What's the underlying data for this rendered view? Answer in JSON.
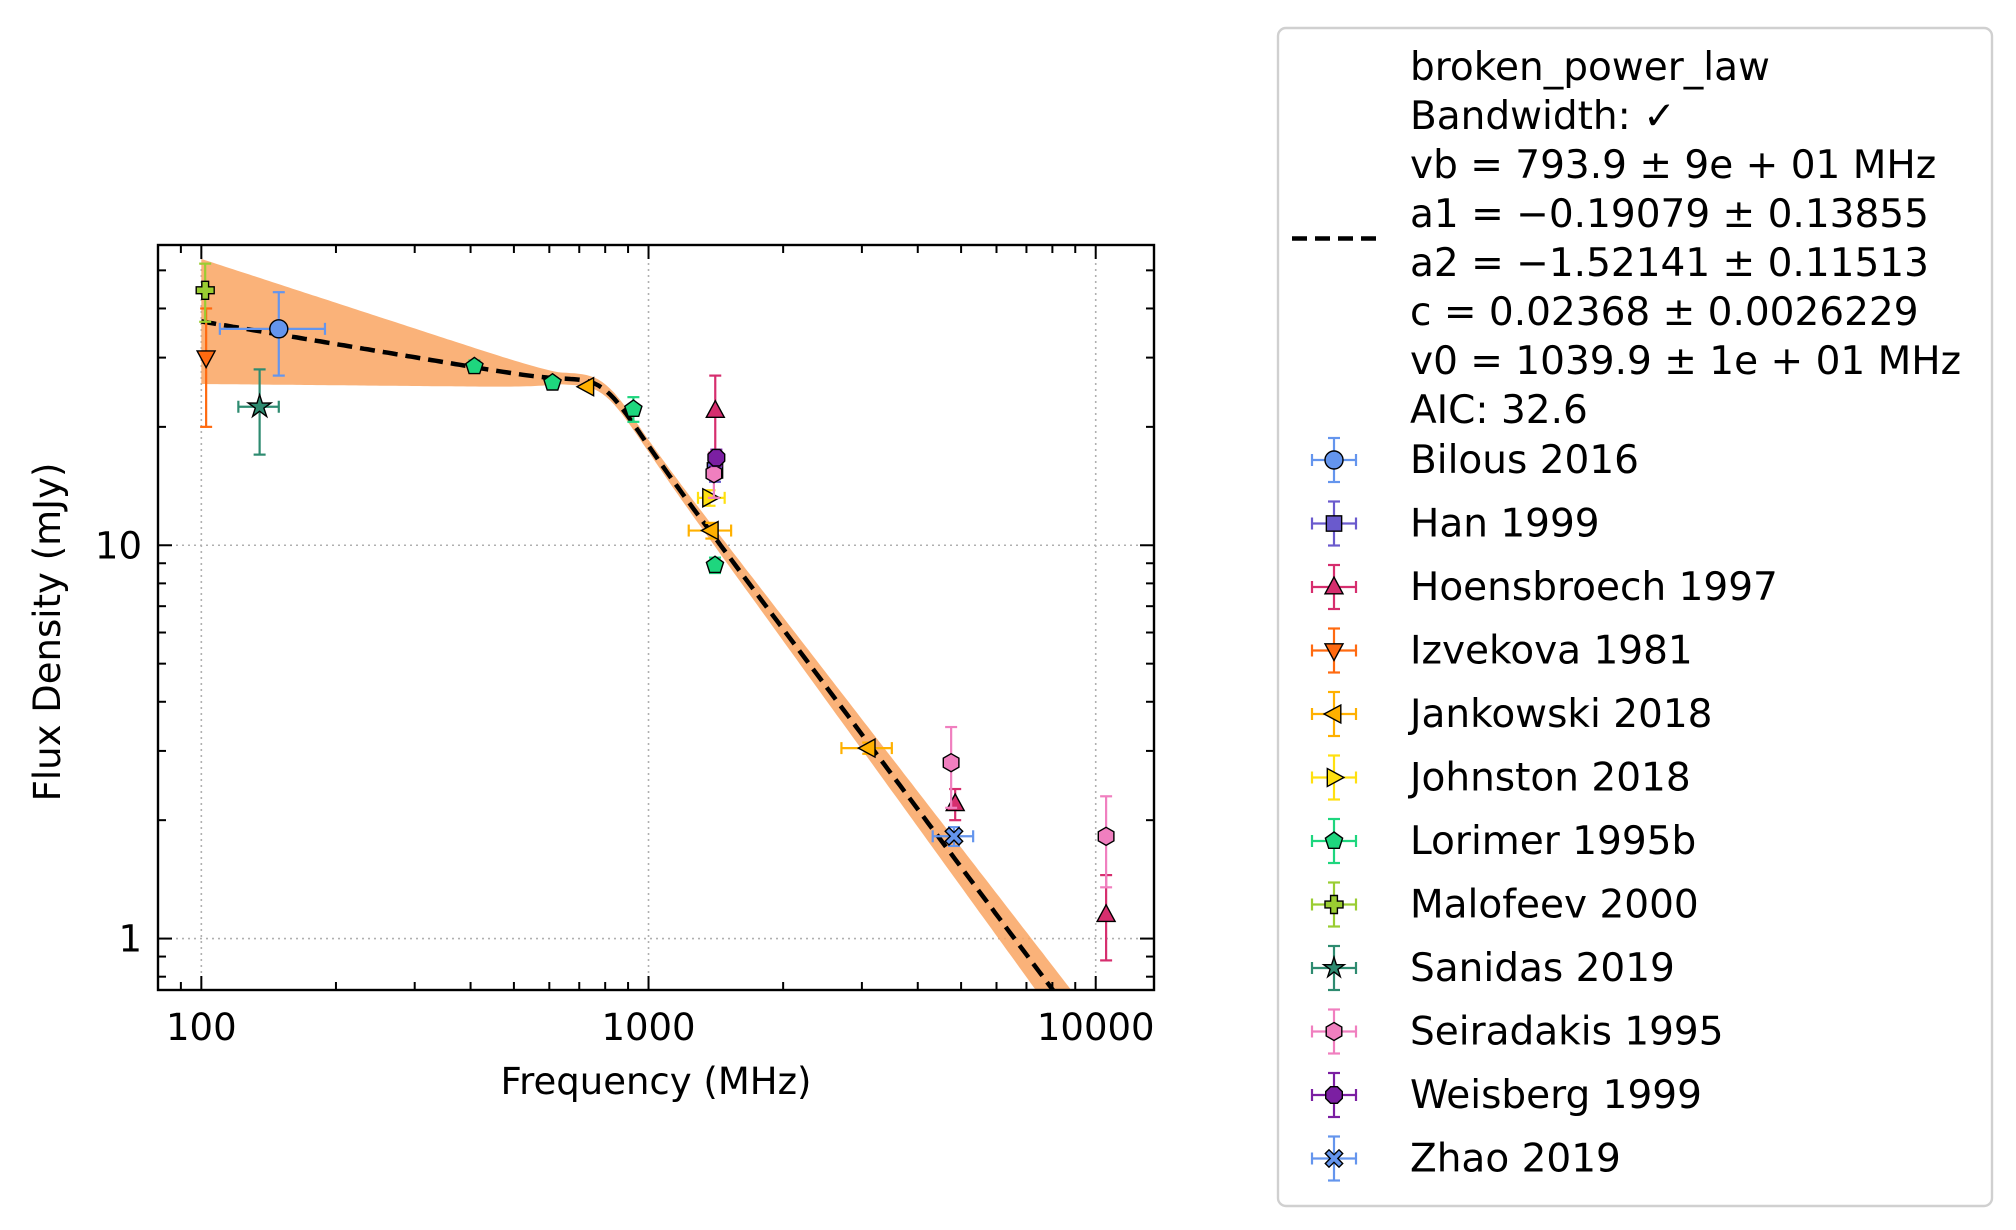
{
  "chart_data": {
    "type": "scatter",
    "xlabel": "Frequency (MHz)",
    "ylabel": "Flux Density (mJy)",
    "xscale": "log",
    "yscale": "log",
    "xlim": [
      80,
      13500
    ],
    "ylim": [
      0.74,
      58
    ],
    "x_ticks": [
      100,
      1000,
      10000
    ],
    "x_tick_labels": [
      "100",
      "1000",
      "10000"
    ],
    "y_ticks": [
      1,
      10
    ],
    "y_tick_labels": [
      "1",
      "10"
    ],
    "grid": true,
    "legend_position": "outside-right",
    "fit": {
      "name": "broken_power_law",
      "legend_lines": [
        "broken_power_law",
        "Bandwidth: ✓",
        "vb = 793.9 ± 9e + 01 MHz",
        "a1 = −0.19079 ± 0.13855",
        "a2 = −1.52141 ± 0.11513",
        "c = 0.02368 ± 0.0026229",
        "v0 = 1039.9 ± 1e + 01 MHz",
        "AIC: 32.6"
      ],
      "vb": 793.9,
      "a1": -0.19079,
      "a2": -1.52141,
      "c": 0.02368,
      "v0": 1039.9,
      "line_color": "#000000",
      "band_color": "#f9a462"
    },
    "series": [
      {
        "name": "Bilous 2016",
        "marker": "circle",
        "color": "#6495ed",
        "points": [
          {
            "x": 149,
            "y": 35.5,
            "xlo": 110,
            "xhi": 189,
            "ylo": 27,
            "yhi": 44
          }
        ]
      },
      {
        "name": "Han 1999",
        "marker": "square",
        "color": "#6a5acd",
        "points": [
          {
            "x": 1408,
            "y": 15.5,
            "ylo": 14.5,
            "yhi": 16.5
          }
        ]
      },
      {
        "name": "Hoensbroech 1997",
        "marker": "triangle-up",
        "color": "#d62e6e",
        "points": [
          {
            "x": 1410,
            "y": 22,
            "ylo": 17,
            "yhi": 27
          },
          {
            "x": 4850,
            "y": 2.2,
            "ylo": 2.0,
            "yhi": 2.4
          },
          {
            "x": 10550,
            "y": 1.15,
            "ylo": 0.88,
            "yhi": 1.45
          }
        ]
      },
      {
        "name": "Izvekova 1981",
        "marker": "triangle-down",
        "color": "#ff6a10",
        "points": [
          {
            "x": 102.5,
            "y": 30,
            "ylo": 20,
            "yhi": 40
          }
        ]
      },
      {
        "name": "Jankowski 2018",
        "marker": "triangle-left",
        "color": "#ffb000",
        "points": [
          {
            "x": 728,
            "y": 25.3
          },
          {
            "x": 1382,
            "y": 10.9,
            "xlo": 1230,
            "xhi": 1530,
            "ylo": 10.4,
            "yhi": 11.4
          },
          {
            "x": 3100,
            "y": 3.05,
            "xlo": 2700,
            "xhi": 3500,
            "ylo": 2.95,
            "yhi": 3.15
          }
        ]
      },
      {
        "name": "Johnston 2018",
        "marker": "triangle-right",
        "color": "#ffe010",
        "points": [
          {
            "x": 1369,
            "y": 13.2,
            "xlo": 1290,
            "xhi": 1480,
            "ylo": 12.6,
            "yhi": 13.8
          }
        ]
      },
      {
        "name": "Lorimer 1995b",
        "marker": "pentagon",
        "color": "#1ed67e",
        "points": [
          {
            "x": 408,
            "y": 28.5,
            "ylo": 27.5,
            "yhi": 29.5
          },
          {
            "x": 610,
            "y": 25.9,
            "ylo": 25.2,
            "yhi": 26.6
          },
          {
            "x": 925,
            "y": 22.2,
            "ylo": 20.6,
            "yhi": 23.8
          },
          {
            "x": 1408,
            "y": 8.9,
            "ylo": 8.5,
            "yhi": 9.3
          }
        ]
      },
      {
        "name": "Malofeev 2000",
        "marker": "plus",
        "color": "#9acd32",
        "points": [
          {
            "x": 102,
            "y": 44.5,
            "ylo": 37,
            "yhi": 52
          }
        ]
      },
      {
        "name": "Sanidas 2019",
        "marker": "star",
        "color": "#2e8b70",
        "points": [
          {
            "x": 135,
            "y": 22.5,
            "xlo": 121,
            "xhi": 149,
            "ylo": 17,
            "yhi": 28
          }
        ]
      },
      {
        "name": "Seiradakis 1995",
        "marker": "hexagon",
        "color": "#f07fbf",
        "points": [
          {
            "x": 1400,
            "y": 15.2,
            "ylo": 13.2,
            "yhi": 17.2
          },
          {
            "x": 4750,
            "y": 2.8,
            "ylo": 2.15,
            "yhi": 3.45
          },
          {
            "x": 10550,
            "y": 1.82,
            "ylo": 1.35,
            "yhi": 2.3
          }
        ]
      },
      {
        "name": "Weisberg 1999",
        "marker": "octagon",
        "color": "#7b1fa2",
        "points": [
          {
            "x": 1418,
            "y": 16.7,
            "ylo": 15.9,
            "yhi": 17.5
          }
        ]
      },
      {
        "name": "Zhao 2019",
        "marker": "x",
        "color": "#6495ed",
        "points": [
          {
            "x": 4820,
            "y": 1.82,
            "xlo": 4320,
            "xhi": 5320,
            "ylo": 1.72,
            "yhi": 1.92
          }
        ]
      }
    ]
  }
}
